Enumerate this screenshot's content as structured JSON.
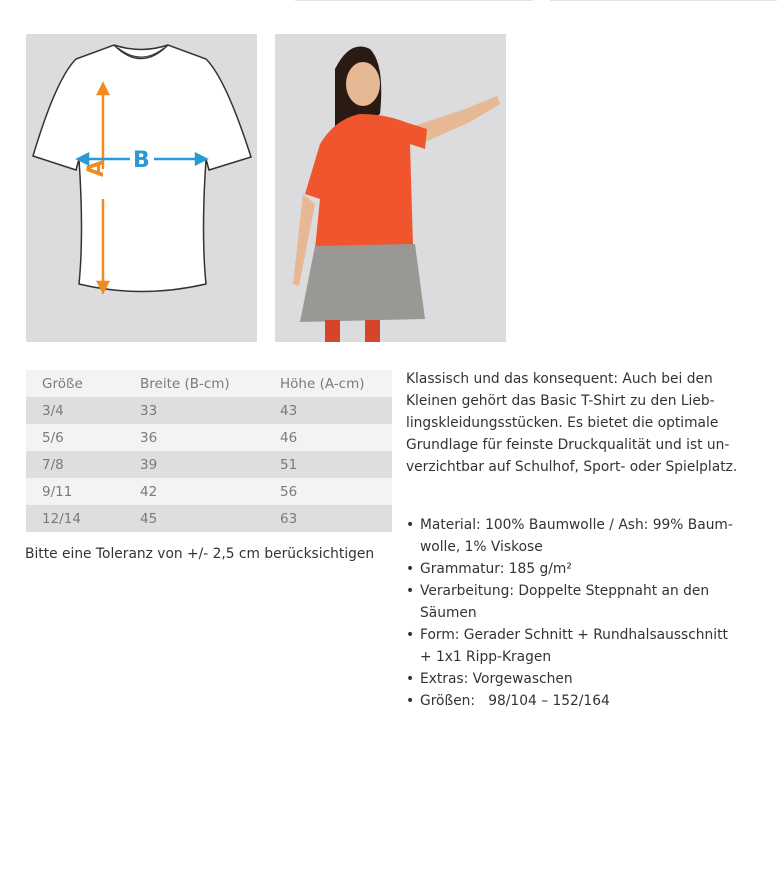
{
  "images": {
    "size_diagram": {
      "label_a": "A",
      "label_b": "B",
      "color_a": "#f28a1e",
      "color_b": "#2a9ad6"
    },
    "model_photo": {
      "shirt_color": "#f0552e"
    }
  },
  "size_table": {
    "headers": [
      "Größe",
      "Breite (B-cm)",
      "Höhe (A-cm)"
    ],
    "rows": [
      [
        "3/4",
        "33",
        "43"
      ],
      [
        "5/6",
        "36",
        "46"
      ],
      [
        "7/8",
        "39",
        "51"
      ],
      [
        "9/11",
        "42",
        "56"
      ],
      [
        "12/14",
        "45",
        "63"
      ]
    ]
  },
  "tolerance_note": "Bitte eine Toleranz von +/- 2,5 cm berücksichtigen",
  "description": "Klassisch und das konsequent: Auch bei den\nKleinen gehört das Basic T-Shirt zu den Lieb-\nlingskleidungsstücken. Es bietet die optimale\nGrundlage für feinste Druckqualität und ist un-\nverzichtbar auf Schulhof, Sport- oder Spielplatz.",
  "features": [
    "Material: 100% Baumwolle / Ash: 99% Baum-\nwolle, 1% Viskose",
    "Grammatur: 185 g/m²",
    "Verarbeitung: Doppelte Steppnaht an den\nSäumen",
    "Form: Gerader Schnitt + Rundhalsausschnitt\n+ 1x1 Ripp-Kragen",
    "Extras: Vorgewaschen",
    "Größen:   98/104 – 152/164"
  ],
  "bullet": "•"
}
